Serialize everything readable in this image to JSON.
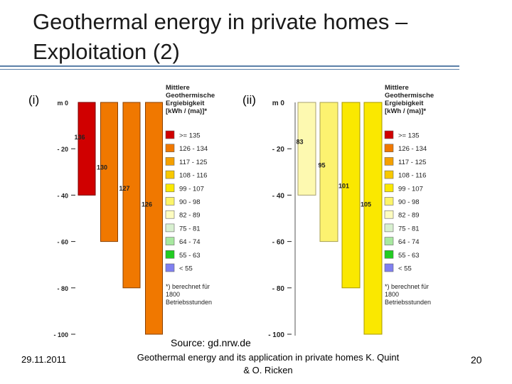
{
  "slide": {
    "title": "Geothermal energy in private homes – Exploitation (2)",
    "source": "Source: gd.nrw.de",
    "date": "29.11.2011",
    "footer_text": "Geothermal energy and its application in private homes  K. Quint & O. Ricken",
    "page_number": "20"
  },
  "chart_data": [
    {
      "type": "bar",
      "panel": "(i)",
      "ylabel": "m",
      "y_ticks": [
        "m 0",
        "- 20",
        "- 40",
        "- 60",
        "- 80",
        "- 100"
      ],
      "ylim": [
        0,
        100
      ],
      "categories": [
        "40 m",
        "60 m",
        "80 m",
        "100 m"
      ],
      "values": [
        136,
        130,
        127,
        126
      ],
      "depth_ends": [
        40,
        60,
        80,
        100
      ],
      "bar_colors": [
        "#d00000",
        "#f07800",
        "#f07800",
        "#f07800"
      ],
      "bar_borders": [
        "#7a0000",
        "#8a4000",
        "#8a4000",
        "#8a4000"
      ],
      "label_depths": [
        16,
        29,
        38,
        45
      ],
      "legend": {
        "title": [
          "Mittlere",
          "Geothermische",
          "Ergiebigkeit",
          "[kWh / (ma)]*"
        ],
        "items": [
          {
            "label": ">= 135",
            "color": "#d00000"
          },
          {
            "label": "126 - 134",
            "color": "#f07800"
          },
          {
            "label": "117 - 125",
            "color": "#f5a000"
          },
          {
            "label": "108 - 116",
            "color": "#f8c800"
          },
          {
            "label": "99 - 107",
            "color": "#fae800"
          },
          {
            "label": "90 - 98",
            "color": "#fcf46a"
          },
          {
            "label": "82 - 89",
            "color": "#fdfcc0"
          },
          {
            "label": "75 - 81",
            "color": "#d8f0d0"
          },
          {
            "label": "64 - 74",
            "color": "#a8e8a0"
          },
          {
            "label": "55 - 63",
            "color": "#22cc22"
          },
          {
            "label": "< 55",
            "color": "#8080f0"
          }
        ],
        "note": [
          "*) berechnet für",
          "1800",
          "Betriebsstunden"
        ]
      }
    },
    {
      "type": "bar",
      "panel": "(ii)",
      "ylabel": "m",
      "y_ticks": [
        "m 0",
        "- 20",
        "- 40",
        "- 60",
        "- 80",
        "- 100"
      ],
      "ylim": [
        0,
        100
      ],
      "categories": [
        "40 m",
        "60 m",
        "80 m",
        "100 m"
      ],
      "values": [
        83,
        95,
        101,
        105
      ],
      "depth_ends": [
        40,
        60,
        80,
        100
      ],
      "bar_colors": [
        "#fdf9b0",
        "#fcf270",
        "#fae800",
        "#fae800"
      ],
      "bar_borders": [
        "#a8a070",
        "#a8a050",
        "#a89800",
        "#a89800"
      ],
      "label_depths": [
        18,
        28,
        37,
        45
      ],
      "legend": {
        "title": [
          "Mittlere",
          "Geothermische",
          "Ergiebigkeit",
          "[kWh / (ma)]*"
        ],
        "items": [
          {
            "label": ">= 135",
            "color": "#d00000"
          },
          {
            "label": "126 - 134",
            "color": "#f07800"
          },
          {
            "label": "117 - 125",
            "color": "#f5a000"
          },
          {
            "label": "108 - 116",
            "color": "#f8c800"
          },
          {
            "label": "99 - 107",
            "color": "#fae800"
          },
          {
            "label": "90 - 98",
            "color": "#fcf46a"
          },
          {
            "label": "82 - 89",
            "color": "#fdfcc0"
          },
          {
            "label": "75 - 81",
            "color": "#d8f0d0"
          },
          {
            "label": "64 - 74",
            "color": "#a8e8a0"
          },
          {
            "label": "55 - 63",
            "color": "#22cc22"
          },
          {
            "label": "< 55",
            "color": "#8080f0"
          }
        ],
        "note": [
          "*) berechnet für",
          "1800",
          "Betriebsstunden"
        ]
      }
    }
  ]
}
